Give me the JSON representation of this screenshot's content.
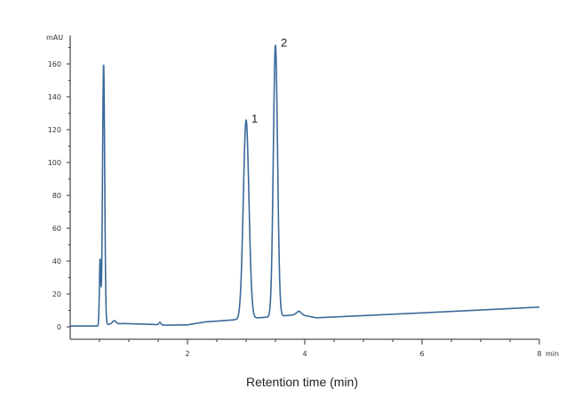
{
  "chart_data": {
    "type": "line",
    "title": "",
    "xlabel": "Retention time (min)",
    "ylabel": "mAU",
    "x_unit": "min",
    "xlim": [
      0,
      8
    ],
    "ylim": [
      -5,
      172
    ],
    "x_ticks": [
      2,
      4,
      6,
      8
    ],
    "y_ticks": [
      0,
      20,
      40,
      60,
      80,
      100,
      120,
      140,
      160
    ],
    "grid": false,
    "line_color": "#3a6a9a",
    "series": [
      {
        "values": [
          {
            "x": 0.0,
            "y": 0.5
          },
          {
            "x": 0.45,
            "y": 0.5
          },
          {
            "x": 0.5,
            "y": 52
          },
          {
            "x": 0.57,
            "y": 159
          },
          {
            "x": 0.64,
            "y": 30
          },
          {
            "x": 0.7,
            "y": 3.5
          },
          {
            "x": 0.9,
            "y": 2
          },
          {
            "x": 1.4,
            "y": 1.5
          },
          {
            "x": 1.53,
            "y": 3
          },
          {
            "x": 1.62,
            "y": 1
          },
          {
            "x": 2.0,
            "y": 1.2
          },
          {
            "x": 2.3,
            "y": 3
          },
          {
            "x": 2.7,
            "y": 4
          },
          {
            "x": 3.0,
            "y": 125
          },
          {
            "x": 3.33,
            "y": 8
          },
          {
            "x": 3.5,
            "y": 171
          },
          {
            "x": 3.68,
            "y": 8
          },
          {
            "x": 3.9,
            "y": 7.5
          },
          {
            "x": 4.2,
            "y": 5.5
          },
          {
            "x": 6.0,
            "y": 8.5
          },
          {
            "x": 8.0,
            "y": 12
          }
        ]
      }
    ],
    "annotations": [
      {
        "text": "1",
        "x": 3.0,
        "y": 125
      },
      {
        "text": "2",
        "x": 3.5,
        "y": 171
      }
    ],
    "x_unit_label": "min"
  }
}
